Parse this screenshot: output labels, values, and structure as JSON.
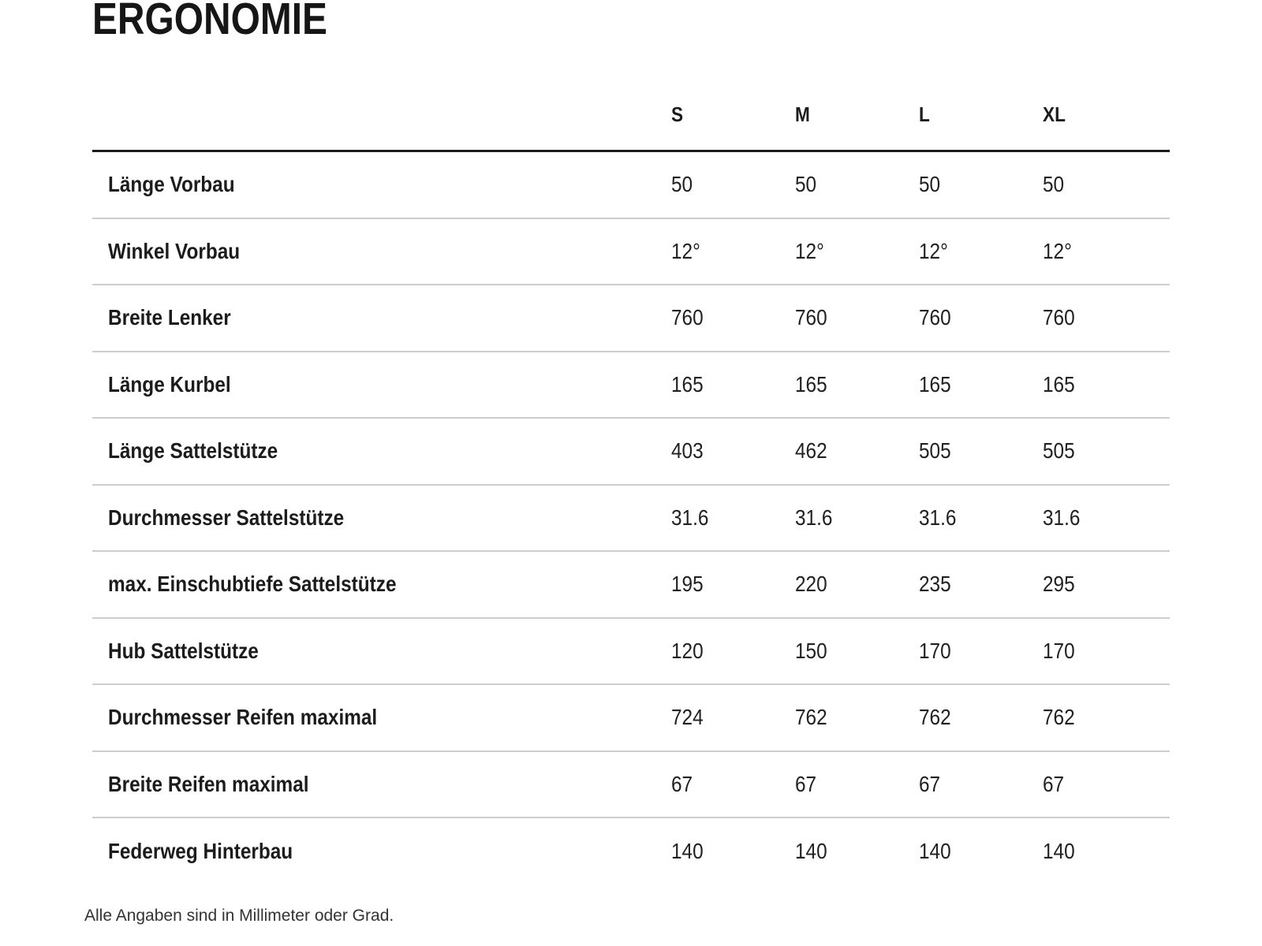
{
  "title": "ERGONOMIE",
  "footnote": "Alle Angaben sind in Millimeter oder Grad.",
  "colors": {
    "text": "#1c1c1c",
    "thick_rule": "#1b1b1b",
    "thin_rule": "#cdcdcd",
    "background": "#ffffff"
  },
  "table": {
    "columns": [
      "S",
      "M",
      "L",
      "XL"
    ],
    "rows": [
      {
        "label": "Länge Vorbau",
        "values": [
          "50",
          "50",
          "50",
          "50"
        ]
      },
      {
        "label": "Winkel Vorbau",
        "values": [
          "12°",
          "12°",
          "12°",
          "12°"
        ]
      },
      {
        "label": "Breite Lenker",
        "values": [
          "760",
          "760",
          "760",
          "760"
        ]
      },
      {
        "label": "Länge Kurbel",
        "values": [
          "165",
          "165",
          "165",
          "165"
        ]
      },
      {
        "label": "Länge Sattelstütze",
        "values": [
          "403",
          "462",
          "505",
          "505"
        ]
      },
      {
        "label": "Durchmesser Sattelstütze",
        "values": [
          "31.6",
          "31.6",
          "31.6",
          "31.6"
        ]
      },
      {
        "label": "max. Einschubtiefe Sattelstütze",
        "values": [
          "195",
          "220",
          "235",
          "295"
        ]
      },
      {
        "label": "Hub Sattelstütze",
        "values": [
          "120",
          "150",
          "170",
          "170"
        ]
      },
      {
        "label": "Durchmesser Reifen maximal",
        "values": [
          "724",
          "762",
          "762",
          "762"
        ]
      },
      {
        "label": "Breite Reifen maximal",
        "values": [
          "67",
          "67",
          "67",
          "67"
        ]
      },
      {
        "label": "Federweg Hinterbau",
        "values": [
          "140",
          "140",
          "140",
          "140"
        ]
      }
    ]
  }
}
